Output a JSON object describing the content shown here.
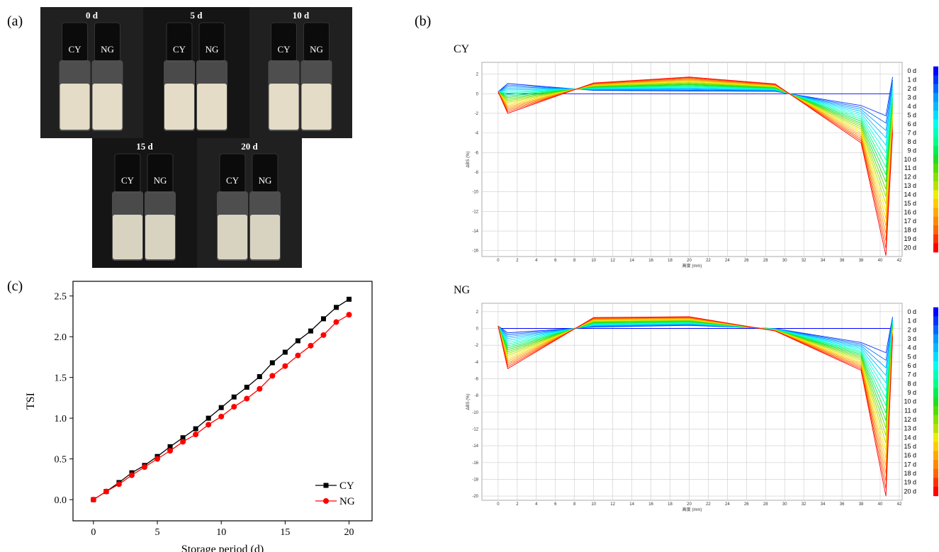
{
  "panel_labels": [
    "(a)",
    "(b)",
    "(c)"
  ],
  "photos": [
    {
      "label": "0 d",
      "samples": [
        "CY",
        "NG"
      ]
    },
    {
      "label": "5 d",
      "samples": [
        "CY",
        "NG"
      ]
    },
    {
      "label": "10 d",
      "samples": [
        "CY",
        "NG"
      ]
    },
    {
      "label": "15 d",
      "samples": [
        "CY",
        "NG"
      ]
    },
    {
      "label": "20 d",
      "samples": [
        "CY",
        "NG"
      ]
    }
  ],
  "chart_data": [
    {
      "type": "line",
      "title": "CY",
      "x_label": "高度 (mm)",
      "y_label": "ΔBS (%)",
      "grid": true,
      "legend": "right",
      "x": [
        0,
        1,
        10,
        20,
        29,
        38,
        40.6,
        41.3
      ],
      "xlim": [
        -1.7,
        42.3
      ],
      "ylim": [
        -16.6,
        3.2
      ],
      "xticks": [
        0,
        2,
        4,
        6,
        8,
        10,
        12,
        14,
        16,
        18,
        20,
        22,
        24,
        26,
        28,
        30,
        32,
        34,
        36,
        38,
        40,
        42
      ],
      "yticks": [
        -16,
        -14,
        -12,
        -10,
        -8,
        -6,
        -4,
        -2,
        0,
        2
      ],
      "series": [
        {
          "name": "0 d",
          "color": "#0000ff",
          "values": [
            0,
            0,
            0,
            0,
            0,
            0,
            0,
            0
          ]
        },
        {
          "name": "1 d",
          "color": "#0033ff",
          "values": [
            0.2,
            1.04,
            0.34,
            0.28,
            0.24,
            -1.2,
            -2.25,
            1.7
          ]
        },
        {
          "name": "2 d",
          "color": "#0066ff",
          "values": [
            0.2,
            0.88,
            0.38,
            0.35,
            0.28,
            -1.4,
            -3,
            1.4
          ]
        },
        {
          "name": "3 d",
          "color": "#0099ff",
          "values": [
            0.2,
            0.72,
            0.42,
            0.43,
            0.32,
            -1.6,
            -3.75,
            1.1
          ]
        },
        {
          "name": "4 d",
          "color": "#00bbff",
          "values": [
            0.2,
            0.56,
            0.46,
            0.5,
            0.36,
            -1.8,
            -4.5,
            0.8
          ]
        },
        {
          "name": "5 d",
          "color": "#00ddff",
          "values": [
            0.2,
            0.4,
            0.5,
            0.58,
            0.4,
            -2,
            -5.25,
            0.5
          ]
        },
        {
          "name": "6 d",
          "color": "#00ffee",
          "values": [
            0.2,
            0.24,
            0.54,
            0.65,
            0.44,
            -2.2,
            -6,
            0.2
          ]
        },
        {
          "name": "7 d",
          "color": "#00ffbb",
          "values": [
            0.2,
            0.08,
            0.58,
            0.73,
            0.48,
            -2.4,
            -6.75,
            -0.1
          ]
        },
        {
          "name": "8 d",
          "color": "#00ff88",
          "values": [
            0.2,
            -0.08,
            0.62,
            0.8,
            0.52,
            -2.6,
            -7.5,
            -0.4
          ]
        },
        {
          "name": "9 d",
          "color": "#00ee55",
          "values": [
            0.2,
            -0.24,
            0.66,
            0.88,
            0.56,
            -2.8,
            -8.25,
            -0.7
          ]
        },
        {
          "name": "10 d",
          "color": "#22dd22",
          "values": [
            0.2,
            -0.4,
            0.7,
            0.95,
            0.6,
            -3,
            -9,
            -1
          ]
        },
        {
          "name": "11 d",
          "color": "#55dd00",
          "values": [
            0.2,
            -0.56,
            0.74,
            1.03,
            0.64,
            -3.2,
            -9.75,
            -1.3
          ]
        },
        {
          "name": "12 d",
          "color": "#88e000",
          "values": [
            0.2,
            -0.72,
            0.78,
            1.1,
            0.68,
            -3.4,
            -10.5,
            -1.6
          ]
        },
        {
          "name": "13 d",
          "color": "#bbe000",
          "values": [
            0.2,
            -0.88,
            0.82,
            1.18,
            0.72,
            -3.6,
            -11.25,
            -1.9
          ]
        },
        {
          "name": "14 d",
          "color": "#eeee00",
          "values": [
            0.2,
            -1.04,
            0.86,
            1.25,
            0.76,
            -3.8,
            -12,
            -2.2
          ]
        },
        {
          "name": "15 d",
          "color": "#ffcc00",
          "values": [
            0.2,
            -1.2,
            0.9,
            1.33,
            0.8,
            -4,
            -12.75,
            -2.5
          ]
        },
        {
          "name": "16 d",
          "color": "#ffaa00",
          "values": [
            0.2,
            -1.36,
            0.94,
            1.4,
            0.84,
            -4.2,
            -13.5,
            -2.8
          ]
        },
        {
          "name": "17 d",
          "color": "#ff8800",
          "values": [
            0.2,
            -1.52,
            0.98,
            1.48,
            0.88,
            -4.4,
            -14.25,
            -3.1
          ]
        },
        {
          "name": "18 d",
          "color": "#ff6600",
          "values": [
            0.2,
            -1.68,
            1.02,
            1.55,
            0.92,
            -4.6,
            -15,
            -3.4
          ]
        },
        {
          "name": "19 d",
          "color": "#ff3300",
          "values": [
            0.2,
            -1.84,
            1.06,
            1.63,
            0.96,
            -4.8,
            -15.75,
            -3.7
          ]
        },
        {
          "name": "20 d",
          "color": "#ff0000",
          "values": [
            0.2,
            -2,
            1.1,
            1.7,
            1,
            -5,
            -16.5,
            -4
          ]
        }
      ]
    },
    {
      "type": "line",
      "title": "NG",
      "x_label": "高度 (mm)",
      "y_label": "ΔBS (%)",
      "grid": true,
      "legend": "right",
      "x": [
        0,
        1,
        10,
        20,
        29,
        38,
        40.6,
        41.3
      ],
      "xlim": [
        -1.7,
        42.3
      ],
      "ylim": [
        -20.5,
        3
      ],
      "xticks": [
        0,
        2,
        4,
        6,
        8,
        10,
        12,
        14,
        16,
        18,
        20,
        22,
        24,
        26,
        28,
        30,
        32,
        34,
        36,
        38,
        40,
        42
      ],
      "yticks": [
        -20,
        -18,
        -16,
        -14,
        -12,
        -10,
        -8,
        -6,
        -4,
        -2,
        0,
        2
      ],
      "series": [
        {
          "name": "0 d",
          "color": "#0000ff",
          "values": [
            0,
            0,
            0,
            0,
            0,
            0,
            0,
            0
          ]
        },
        {
          "name": "1 d",
          "color": "#0033ff",
          "values": [
            0.3,
            -0.53,
            0.16,
            0.36,
            -0.02,
            -1.68,
            -2.9,
            1.38
          ]
        },
        {
          "name": "2 d",
          "color": "#0066ff",
          "values": [
            0.3,
            -0.75,
            0.22,
            0.41,
            -0.03,
            -1.85,
            -3.8,
            1.25
          ]
        },
        {
          "name": "3 d",
          "color": "#0099ff",
          "values": [
            0.3,
            -0.98,
            0.28,
            0.47,
            -0.05,
            -2.03,
            -4.7,
            1.13
          ]
        },
        {
          "name": "4 d",
          "color": "#00bbff",
          "values": [
            0.3,
            -1.2,
            0.34,
            0.52,
            -0.06,
            -2.2,
            -5.6,
            1
          ]
        },
        {
          "name": "5 d",
          "color": "#00ddff",
          "values": [
            0.3,
            -1.43,
            0.4,
            0.58,
            -0.08,
            -2.38,
            -6.5,
            0.88
          ]
        },
        {
          "name": "6 d",
          "color": "#00ffee",
          "values": [
            0.3,
            -1.65,
            0.46,
            0.63,
            -0.09,
            -2.55,
            -7.4,
            0.75
          ]
        },
        {
          "name": "7 d",
          "color": "#00ffbb",
          "values": [
            0.3,
            -1.88,
            0.52,
            0.69,
            -0.11,
            -2.73,
            -8.3,
            0.63
          ]
        },
        {
          "name": "8 d",
          "color": "#00ff88",
          "values": [
            0.3,
            -2.1,
            0.58,
            0.74,
            -0.12,
            -2.9,
            -9.2,
            0.5
          ]
        },
        {
          "name": "9 d",
          "color": "#00ee55",
          "values": [
            0.3,
            -2.33,
            0.64,
            0.8,
            -0.14,
            -3.08,
            -10.1,
            0.38
          ]
        },
        {
          "name": "10 d",
          "color": "#22dd22",
          "values": [
            0.3,
            -2.55,
            0.7,
            0.85,
            -0.15,
            -3.25,
            -11,
            0.25
          ]
        },
        {
          "name": "11 d",
          "color": "#55dd00",
          "values": [
            0.3,
            -2.78,
            0.76,
            0.91,
            -0.17,
            -3.43,
            -11.9,
            0.13
          ]
        },
        {
          "name": "12 d",
          "color": "#88e000",
          "values": [
            0.3,
            -3,
            0.82,
            0.96,
            -0.18,
            -3.6,
            -12.8,
            0
          ]
        },
        {
          "name": "13 d",
          "color": "#bbe000",
          "values": [
            0.3,
            -3.23,
            0.88,
            1.02,
            -0.2,
            -3.78,
            -13.7,
            -0.13
          ]
        },
        {
          "name": "14 d",
          "color": "#eeee00",
          "values": [
            0.3,
            -3.45,
            0.94,
            1.07,
            -0.21,
            -3.95,
            -14.6,
            -0.25
          ]
        },
        {
          "name": "15 d",
          "color": "#ffcc00",
          "values": [
            0.3,
            -3.68,
            1,
            1.13,
            -0.23,
            -4.13,
            -15.5,
            -0.38
          ]
        },
        {
          "name": "16 d",
          "color": "#ffaa00",
          "values": [
            0.3,
            -3.9,
            1.06,
            1.18,
            -0.24,
            -4.3,
            -16.4,
            -0.5
          ]
        },
        {
          "name": "17 d",
          "color": "#ff8800",
          "values": [
            0.3,
            -4.13,
            1.12,
            1.24,
            -0.26,
            -4.48,
            -17.3,
            -0.63
          ]
        },
        {
          "name": "18 d",
          "color": "#ff6600",
          "values": [
            0.3,
            -4.35,
            1.18,
            1.29,
            -0.27,
            -4.65,
            -18.2,
            -0.75
          ]
        },
        {
          "name": "19 d",
          "color": "#ff3300",
          "values": [
            0.3,
            -4.58,
            1.24,
            1.35,
            -0.29,
            -4.83,
            -19.1,
            -0.88
          ]
        },
        {
          "name": "20 d",
          "color": "#ff0000",
          "values": [
            0.3,
            -4.8,
            1.3,
            1.4,
            -0.3,
            -5,
            -20,
            -1
          ]
        }
      ]
    },
    {
      "type": "line",
      "x_label": "Storage period (d)",
      "y_label": "TSI",
      "grid": false,
      "legend": "lower right",
      "x": [
        0,
        1,
        2,
        3,
        4,
        5,
        6,
        7,
        8,
        9,
        10,
        11,
        12,
        13,
        14,
        15,
        16,
        17,
        18,
        19,
        20
      ],
      "xlim": [
        -1.6,
        21.8
      ],
      "ylim": [
        -0.26,
        2.68
      ],
      "xticks": [
        0,
        5,
        10,
        15,
        20
      ],
      "yticks": [
        {
          "value": 0,
          "label": "0.0"
        },
        0.5,
        {
          "value": 1,
          "label": "1.0"
        },
        1.5,
        {
          "value": 2,
          "label": "2.0"
        },
        2.5
      ],
      "series": [
        {
          "name": "CY",
          "color": "#000000",
          "marker": "square",
          "values": [
            0,
            0.1,
            0.21,
            0.33,
            0.42,
            0.53,
            0.65,
            0.76,
            0.87,
            1.0,
            1.13,
            1.26,
            1.38,
            1.51,
            1.68,
            1.81,
            1.95,
            2.07,
            2.22,
            2.36,
            2.46
          ]
        },
        {
          "name": "NG",
          "color": "#ff0000",
          "marker": "circle",
          "values": [
            0,
            0.1,
            0.19,
            0.3,
            0.4,
            0.5,
            0.6,
            0.71,
            0.8,
            0.92,
            1.02,
            1.14,
            1.24,
            1.36,
            1.52,
            1.64,
            1.77,
            1.89,
            2.02,
            2.18,
            2.27
          ]
        }
      ]
    }
  ]
}
